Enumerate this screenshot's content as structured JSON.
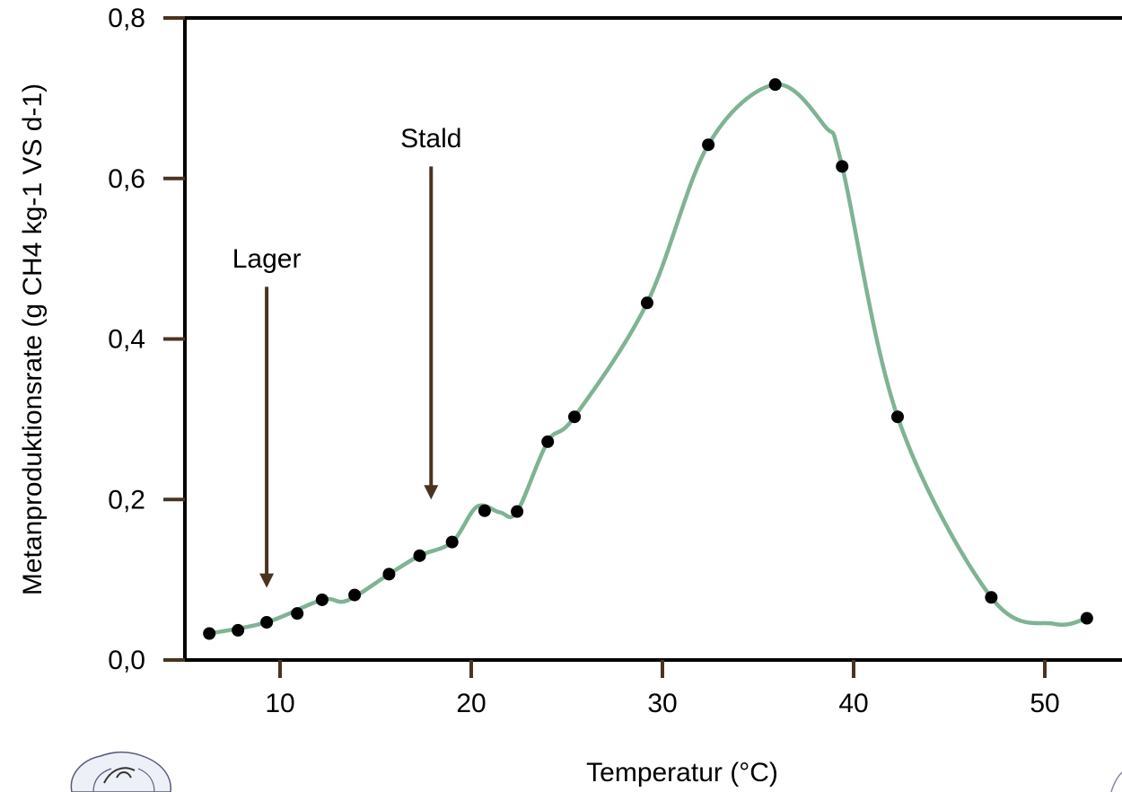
{
  "chart_data": {
    "type": "scatter",
    "title": "",
    "xlabel": "Temperatur (°C)",
    "ylabel": "Metanproduktionsrate (g CH4 kg-1 VS d-1)",
    "xlim": [
      5,
      52
    ],
    "ylim": [
      0,
      0.8
    ],
    "x_ticks": [
      10,
      20,
      30,
      40,
      50
    ],
    "x_tick_labels": [
      "10",
      "20",
      "30",
      "40",
      "50"
    ],
    "y_ticks": [
      0,
      0.2,
      0.4,
      0.6,
      0.8
    ],
    "y_tick_labels": [
      "0,0",
      "0,2",
      "0,4",
      "0,6",
      "0,8"
    ],
    "grid": false,
    "legend": "none",
    "series": [
      {
        "points": [
          {
            "x": 6.3,
            "y": 0.033
          },
          {
            "x": 7.8,
            "y": 0.037
          },
          {
            "x": 9.3,
            "y": 0.047
          },
          {
            "x": 10.9,
            "y": 0.058
          },
          {
            "x": 12.2,
            "y": 0.075
          },
          {
            "x": 13.9,
            "y": 0.081
          },
          {
            "x": 15.7,
            "y": 0.107
          },
          {
            "x": 17.3,
            "y": 0.13
          },
          {
            "x": 19.0,
            "y": 0.147
          },
          {
            "x": 20.7,
            "y": 0.186
          },
          {
            "x": 22.4,
            "y": 0.185
          },
          {
            "x": 24.0,
            "y": 0.272
          },
          {
            "x": 25.4,
            "y": 0.303
          },
          {
            "x": 29.2,
            "y": 0.445
          },
          {
            "x": 32.4,
            "y": 0.642
          },
          {
            "x": 35.9,
            "y": 0.717
          },
          {
            "x": 39.4,
            "y": 0.615
          },
          {
            "x": 42.3,
            "y": 0.303
          },
          {
            "x": 47.2,
            "y": 0.078
          },
          {
            "x": 52.2,
            "y": 0.052
          }
        ],
        "curve": [
          [
            6.3,
            0.033
          ],
          [
            9.3,
            0.047
          ],
          [
            12.2,
            0.075
          ],
          [
            13.5,
            0.074
          ],
          [
            15.7,
            0.107
          ],
          [
            17.3,
            0.13
          ],
          [
            19.0,
            0.147
          ],
          [
            20.3,
            0.191
          ],
          [
            21.5,
            0.184
          ],
          [
            22.4,
            0.185
          ],
          [
            24.0,
            0.272
          ],
          [
            25.4,
            0.303
          ],
          [
            29.2,
            0.445
          ],
          [
            32.4,
            0.642
          ],
          [
            35.9,
            0.717
          ],
          [
            38.5,
            0.665
          ],
          [
            39.4,
            0.615
          ],
          [
            42.3,
            0.303
          ],
          [
            47.2,
            0.078
          ],
          [
            50.5,
            0.045
          ],
          [
            52.2,
            0.052
          ]
        ],
        "marker_color": "#000000",
        "line_color": "#7fb394"
      }
    ],
    "annotations": [
      {
        "text": "Lager",
        "x": 9.3,
        "text_y": 0.5,
        "arrow_from_y": 0.465,
        "arrow_to_y": 0.09
      },
      {
        "text": "Stald",
        "x": 17.9,
        "text_y": 0.65,
        "arrow_from_y": 0.615,
        "arrow_to_y": 0.2
      }
    ],
    "axis_color": "#000000",
    "tick_color": "#4a3420",
    "arrow_color": "#4a3420"
  }
}
